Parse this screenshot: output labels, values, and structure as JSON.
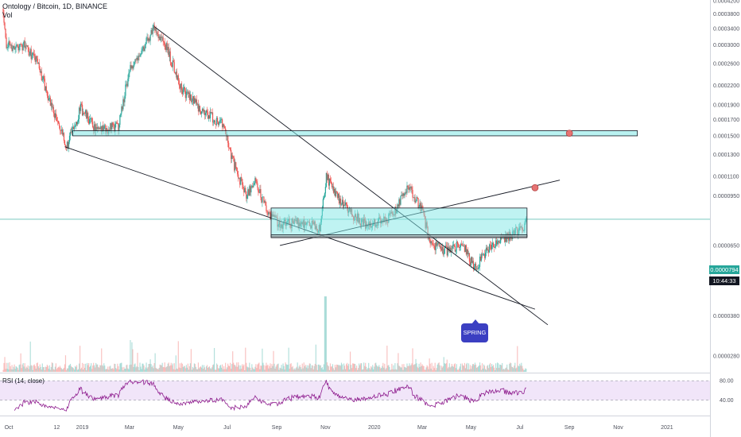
{
  "header": {
    "title": "Ontology / Bitcoin, 1D, BINANCE",
    "volume_label": "Vol"
  },
  "price_labels": {
    "last_price": "0.0000794",
    "countdown": "10:44:33"
  },
  "annotation": {
    "text": "SPRING"
  },
  "rsi": {
    "label": "RSI (14, close)",
    "upper": "80.00",
    "lower": "40.00"
  },
  "colors": {
    "up": "#26a69a",
    "down": "#ef5350",
    "zone_fill": "#7fe8e6",
    "rsi_line": "#8e1c8e",
    "rsi_band": "#e8d4f5",
    "annotation": "#3b3fc2",
    "marker": "#e57373"
  },
  "chart_data": {
    "type": "candlestick",
    "title": "Ontology / Bitcoin, 1D, BINANCE",
    "y_scale": "log",
    "y_ticks": [
      "0.0004200",
      "0.0003800",
      "0.0003400",
      "0.0003000",
      "0.0002600",
      "0.0002200",
      "0.0001900",
      "0.0001700",
      "0.0001500",
      "0.0001300",
      "0.0001100",
      "0.0000950",
      "0.0000794",
      "0.0000650",
      "0.0000500",
      "0.0000380",
      "0.0000280"
    ],
    "x_ticks": [
      "Oct",
      "12",
      "2019",
      "Mar",
      "May",
      "Jul",
      "Sep",
      "Nov",
      "2020",
      "Mar",
      "May",
      "Jul",
      "Sep",
      "Nov",
      "2021"
    ],
    "price_path": [
      [
        "2018-09-24",
        0.000395
      ],
      [
        "2018-09-28",
        0.0003
      ],
      [
        "2018-10-10",
        0.000295
      ],
      [
        "2018-10-20",
        0.0003
      ],
      [
        "2018-11-05",
        0.000265
      ],
      [
        "2018-11-20",
        0.0002
      ],
      [
        "2018-12-05",
        0.000155
      ],
      [
        "2018-12-12",
        0.000138
      ],
      [
        "2018-12-30",
        0.000185
      ],
      [
        "2019-01-20",
        0.000155
      ],
      [
        "2019-02-15",
        0.000162
      ],
      [
        "2019-03-01",
        0.00025
      ],
      [
        "2019-03-20",
        0.0003
      ],
      [
        "2019-04-01",
        0.000345
      ],
      [
        "2019-04-15",
        0.0003
      ],
      [
        "2019-05-05",
        0.000215
      ],
      [
        "2019-06-01",
        0.00018
      ],
      [
        "2019-06-25",
        0.000165
      ],
      [
        "2019-07-10",
        0.00012
      ],
      [
        "2019-07-25",
        9.5e-05
      ],
      [
        "2019-08-05",
        0.000105
      ],
      [
        "2019-08-20",
        8.5e-05
      ],
      [
        "2019-09-05",
        7.6e-05
      ],
      [
        "2019-10-01",
        7.8e-05
      ],
      [
        "2019-10-25",
        7.4e-05
      ],
      [
        "2019-11-02",
        0.00011
      ],
      [
        "2019-11-12",
        9.7e-05
      ],
      [
        "2019-12-01",
        8.4e-05
      ],
      [
        "2019-12-25",
        7.5e-05
      ],
      [
        "2020-01-25",
        8.2e-05
      ],
      [
        "2020-02-12",
        0.000102
      ],
      [
        "2020-03-01",
        8.5e-05
      ],
      [
        "2020-03-12",
        6.5e-05
      ],
      [
        "2020-04-05",
        6.2e-05
      ],
      [
        "2020-04-20",
        6.7e-05
      ],
      [
        "2020-05-05",
        5.4e-05
      ],
      [
        "2020-05-20",
        6.2e-05
      ],
      [
        "2020-06-10",
        6.8e-05
      ],
      [
        "2020-07-05",
        7.4e-05
      ],
      [
        "2020-07-09",
        7.94e-05
      ]
    ],
    "rsi_levels": [
      80,
      40
    ],
    "drawings": [
      {
        "type": "trendline",
        "from": [
          "2019-04-01",
          0.000345
        ],
        "to": [
          "2020-08-05",
          3.55e-05
        ]
      },
      {
        "type": "trendline",
        "from": [
          "2018-12-10",
          0.000138
        ],
        "to": [
          "2020-07-20",
          4e-05
        ]
      },
      {
        "type": "trendline",
        "from": [
          "2019-09-05",
          6.5e-05
        ],
        "to": [
          "2020-08-20",
          0.000107
        ]
      },
      {
        "type": "zone",
        "top": 0.000156,
        "bottom": 0.00015
      },
      {
        "type": "zone",
        "top": 8.65e-05,
        "bottom": 6.95e-05
      },
      {
        "type": "zone",
        "top": 7.05e-05,
        "bottom": 6.9e-05
      }
    ]
  }
}
